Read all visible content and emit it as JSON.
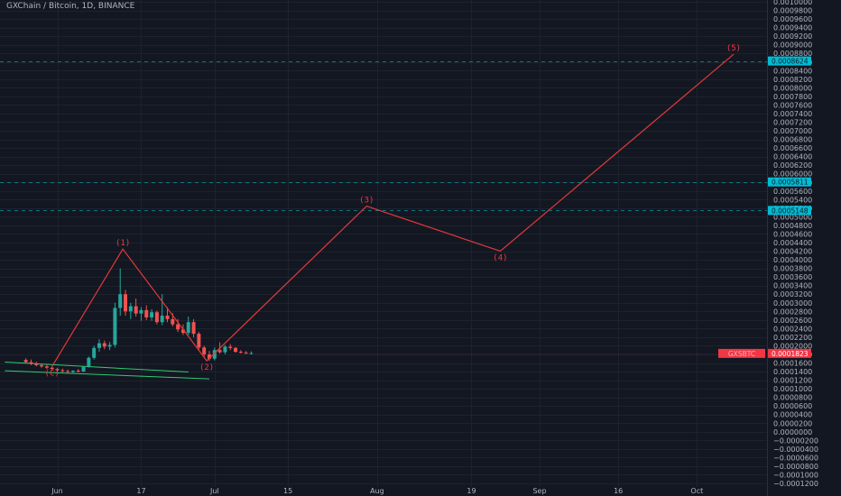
{
  "chart_data": {
    "type": "candlestick",
    "title": "GXChain / Bitcoin, 1D, BINANCE",
    "y_axis": {
      "min": -0.00012,
      "max": 0.001,
      "labels": [
        "0.0010000",
        "0.0009800",
        "0.0009600",
        "0.0009400",
        "0.0009200",
        "0.0009000",
        "0.0008800",
        "0.0008600",
        "0.0008400",
        "0.0008200",
        "0.0008000",
        "0.0007800",
        "0.0007600",
        "0.0007400",
        "0.0007200",
        "0.0007000",
        "0.0006800",
        "0.0006600",
        "0.0006400",
        "0.0006200",
        "0.0006000",
        "0.0005800",
        "0.0005600",
        "0.0005400",
        "0.0005200",
        "0.0005000",
        "0.0004800",
        "0.0004600",
        "0.0004400",
        "0.0004200",
        "0.0004000",
        "0.0003800",
        "0.0003600",
        "0.0003400",
        "0.0003200",
        "0.0003000",
        "0.0002800",
        "0.0002600",
        "0.0002400",
        "0.0002200",
        "0.0002000",
        "0.0001800",
        "0.0001600",
        "0.0001400",
        "0.0001200",
        "0.0001000",
        "0.0000800",
        "0.0000600",
        "0.0000400",
        "0.0000200",
        "0.0000000",
        "−0.0000200",
        "−0.0000400",
        "−0.0000600",
        "−0.0000800",
        "−0.0001000",
        "−0.0001200"
      ]
    },
    "x_axis": {
      "labels": [
        {
          "text": "Jun",
          "day": 0
        },
        {
          "text": "17",
          "day": 16
        },
        {
          "text": "Jul",
          "day": 30
        },
        {
          "text": "15",
          "day": 44
        },
        {
          "text": "Aug",
          "day": 61
        },
        {
          "text": "19",
          "day": 79
        },
        {
          "text": "Sep",
          "day": 92
        },
        {
          "text": "16",
          "day": 107
        },
        {
          "text": "Oct",
          "day": 122
        }
      ]
    },
    "candles": [
      {
        "d": -6,
        "o": 0.000167,
        "h": 0.000171,
        "l": 0.000159,
        "c": 0.000162
      },
      {
        "d": -5,
        "o": 0.000162,
        "h": 0.000168,
        "l": 0.000155,
        "c": 0.000158
      },
      {
        "d": -4,
        "o": 0.000158,
        "h": 0.000163,
        "l": 0.000152,
        "c": 0.000155
      },
      {
        "d": -3,
        "o": 0.000155,
        "h": 0.000159,
        "l": 0.000149,
        "c": 0.000152
      },
      {
        "d": -2,
        "o": 0.000152,
        "h": 0.000156,
        "l": 0.000146,
        "c": 0.000149
      },
      {
        "d": -1,
        "o": 0.000149,
        "h": 0.000152,
        "l": 0.000143,
        "c": 0.000146
      },
      {
        "d": 0,
        "o": 0.000146,
        "h": 0.000149,
        "l": 0.00014,
        "c": 0.000143
      },
      {
        "d": 1,
        "o": 0.000143,
        "h": 0.000147,
        "l": 0.000138,
        "c": 0.000141
      },
      {
        "d": 2,
        "o": 0.000141,
        "h": 0.000145,
        "l": 0.000136,
        "c": 0.000139
      },
      {
        "d": 3,
        "o": 0.000139,
        "h": 0.000143,
        "l": 0.000135,
        "c": 0.000142
      },
      {
        "d": 4,
        "o": 0.000142,
        "h": 0.000146,
        "l": 0.000138,
        "c": 0.00014
      },
      {
        "d": 5,
        "o": 0.00014,
        "h": 0.000153,
        "l": 0.000139,
        "c": 0.000151
      },
      {
        "d": 6,
        "o": 0.000151,
        "h": 0.000175,
        "l": 0.000149,
        "c": 0.000172
      },
      {
        "d": 7,
        "o": 0.000172,
        "h": 0.0002,
        "l": 0.000168,
        "c": 0.000195
      },
      {
        "d": 8,
        "o": 0.000195,
        "h": 0.000215,
        "l": 0.000186,
        "c": 0.000206
      },
      {
        "d": 9,
        "o": 0.000206,
        "h": 0.000212,
        "l": 0.000192,
        "c": 0.000198
      },
      {
        "d": 10,
        "o": 0.000198,
        "h": 0.000209,
        "l": 0.00019,
        "c": 0.000202
      },
      {
        "d": 11,
        "o": 0.000202,
        "h": 0.0003,
        "l": 0.000196,
        "c": 0.000288
      },
      {
        "d": 12,
        "o": 0.000288,
        "h": 0.00038,
        "l": 0.00027,
        "c": 0.00032
      },
      {
        "d": 13,
        "o": 0.00032,
        "h": 0.00033,
        "l": 0.00027,
        "c": 0.00028
      },
      {
        "d": 14,
        "o": 0.00028,
        "h": 0.0003,
        "l": 0.000262,
        "c": 0.000292
      },
      {
        "d": 15,
        "o": 0.000292,
        "h": 0.00031,
        "l": 0.000268,
        "c": 0.000275
      },
      {
        "d": 16,
        "o": 0.000275,
        "h": 0.00029,
        "l": 0.000258,
        "c": 0.000283
      },
      {
        "d": 17,
        "o": 0.000283,
        "h": 0.000294,
        "l": 0.00026,
        "c": 0.000266
      },
      {
        "d": 18,
        "o": 0.000266,
        "h": 0.000285,
        "l": 0.000258,
        "c": 0.000278
      },
      {
        "d": 19,
        "o": 0.000278,
        "h": 0.000282,
        "l": 0.00025,
        "c": 0.000255
      },
      {
        "d": 20,
        "o": 0.000255,
        "h": 0.00032,
        "l": 0.000248,
        "c": 0.00027
      },
      {
        "d": 21,
        "o": 0.00027,
        "h": 0.00029,
        "l": 0.000255,
        "c": 0.000262
      },
      {
        "d": 22,
        "o": 0.000262,
        "h": 0.000276,
        "l": 0.000245,
        "c": 0.00025
      },
      {
        "d": 23,
        "o": 0.00025,
        "h": 0.000262,
        "l": 0.000232,
        "c": 0.000238
      },
      {
        "d": 24,
        "o": 0.000238,
        "h": 0.00025,
        "l": 0.000225,
        "c": 0.00023
      },
      {
        "d": 25,
        "o": 0.00023,
        "h": 0.000268,
        "l": 0.000225,
        "c": 0.000255
      },
      {
        "d": 26,
        "o": 0.000255,
        "h": 0.000262,
        "l": 0.00022,
        "c": 0.000228
      },
      {
        "d": 27,
        "o": 0.000228,
        "h": 0.000232,
        "l": 0.00019,
        "c": 0.000196
      },
      {
        "d": 28,
        "o": 0.000196,
        "h": 0.0002,
        "l": 0.000172,
        "c": 0.00018
      },
      {
        "d": 29,
        "o": 0.00018,
        "h": 0.000188,
        "l": 0.000165,
        "c": 0.00017
      },
      {
        "d": 30,
        "o": 0.00017,
        "h": 0.000196,
        "l": 0.000166,
        "c": 0.00019
      },
      {
        "d": 31,
        "o": 0.00019,
        "h": 0.000208,
        "l": 0.000182,
        "c": 0.000185
      },
      {
        "d": 32,
        "o": 0.000185,
        "h": 0.000202,
        "l": 0.00018,
        "c": 0.000198
      },
      {
        "d": 33,
        "o": 0.000198,
        "h": 0.000204,
        "l": 0.00019,
        "c": 0.000195
      },
      {
        "d": 34,
        "o": 0.000195,
        "h": 0.000197,
        "l": 0.000184,
        "c": 0.000186
      },
      {
        "d": 35,
        "o": 0.000186,
        "h": 0.00019,
        "l": 0.000182,
        "c": 0.000184
      },
      {
        "d": 36,
        "o": 0.000184,
        "h": 0.000188,
        "l": 0.000181,
        "c": 0.000183
      },
      {
        "d": 37,
        "o": 0.000183,
        "h": 0.000187,
        "l": 0.00018,
        "c": 0.000183
      }
    ],
    "wave_path": [
      {
        "label": "(C)",
        "day": -1,
        "value": 0.000152,
        "label_pos": "below"
      },
      {
        "label": "(1)",
        "day": 12.5,
        "value": 0.000425,
        "label_pos": "above"
      },
      {
        "label": "(2)",
        "day": 28.5,
        "value": 0.000165,
        "label_pos": "below"
      },
      {
        "label": "(3)",
        "day": 59,
        "value": 0.000525,
        "label_pos": "above"
      },
      {
        "label": "(4)",
        "day": 84.5,
        "value": 0.00042,
        "label_pos": "below"
      },
      {
        "label": "(5)",
        "day": 129,
        "value": 0.000878,
        "label_pos": "above"
      }
    ],
    "trend_lines": [
      {
        "from": {
          "day": -10,
          "value": 0.000162
        },
        "to": {
          "day": 25,
          "value": 0.000139
        }
      },
      {
        "from": {
          "day": -10,
          "value": 0.000142
        },
        "to": {
          "day": 29,
          "value": 0.000123
        }
      }
    ],
    "horizontal_levels": [
      {
        "value": 0.0008624,
        "label": "0.0008624",
        "color": "#00bcd4"
      },
      {
        "value": 0.0005811,
        "label": "0.0005811",
        "color": "#00bcd4"
      },
      {
        "value": 0.0005148,
        "label": "0.0005148",
        "color": "#00bcd4"
      }
    ],
    "current_price": {
      "symbol": "GXSBTC",
      "value": 0.0001823,
      "label": "0.0001823",
      "color": "#f23645"
    },
    "colors": {
      "background": "#131722",
      "grid": "#1e222d",
      "up": "#26a69a",
      "down": "#ef5350",
      "wave": "#e03a3a",
      "trend": "#2ecc71",
      "text": "#b2b5be",
      "level": "#00bcd4"
    },
    "grid": true
  }
}
